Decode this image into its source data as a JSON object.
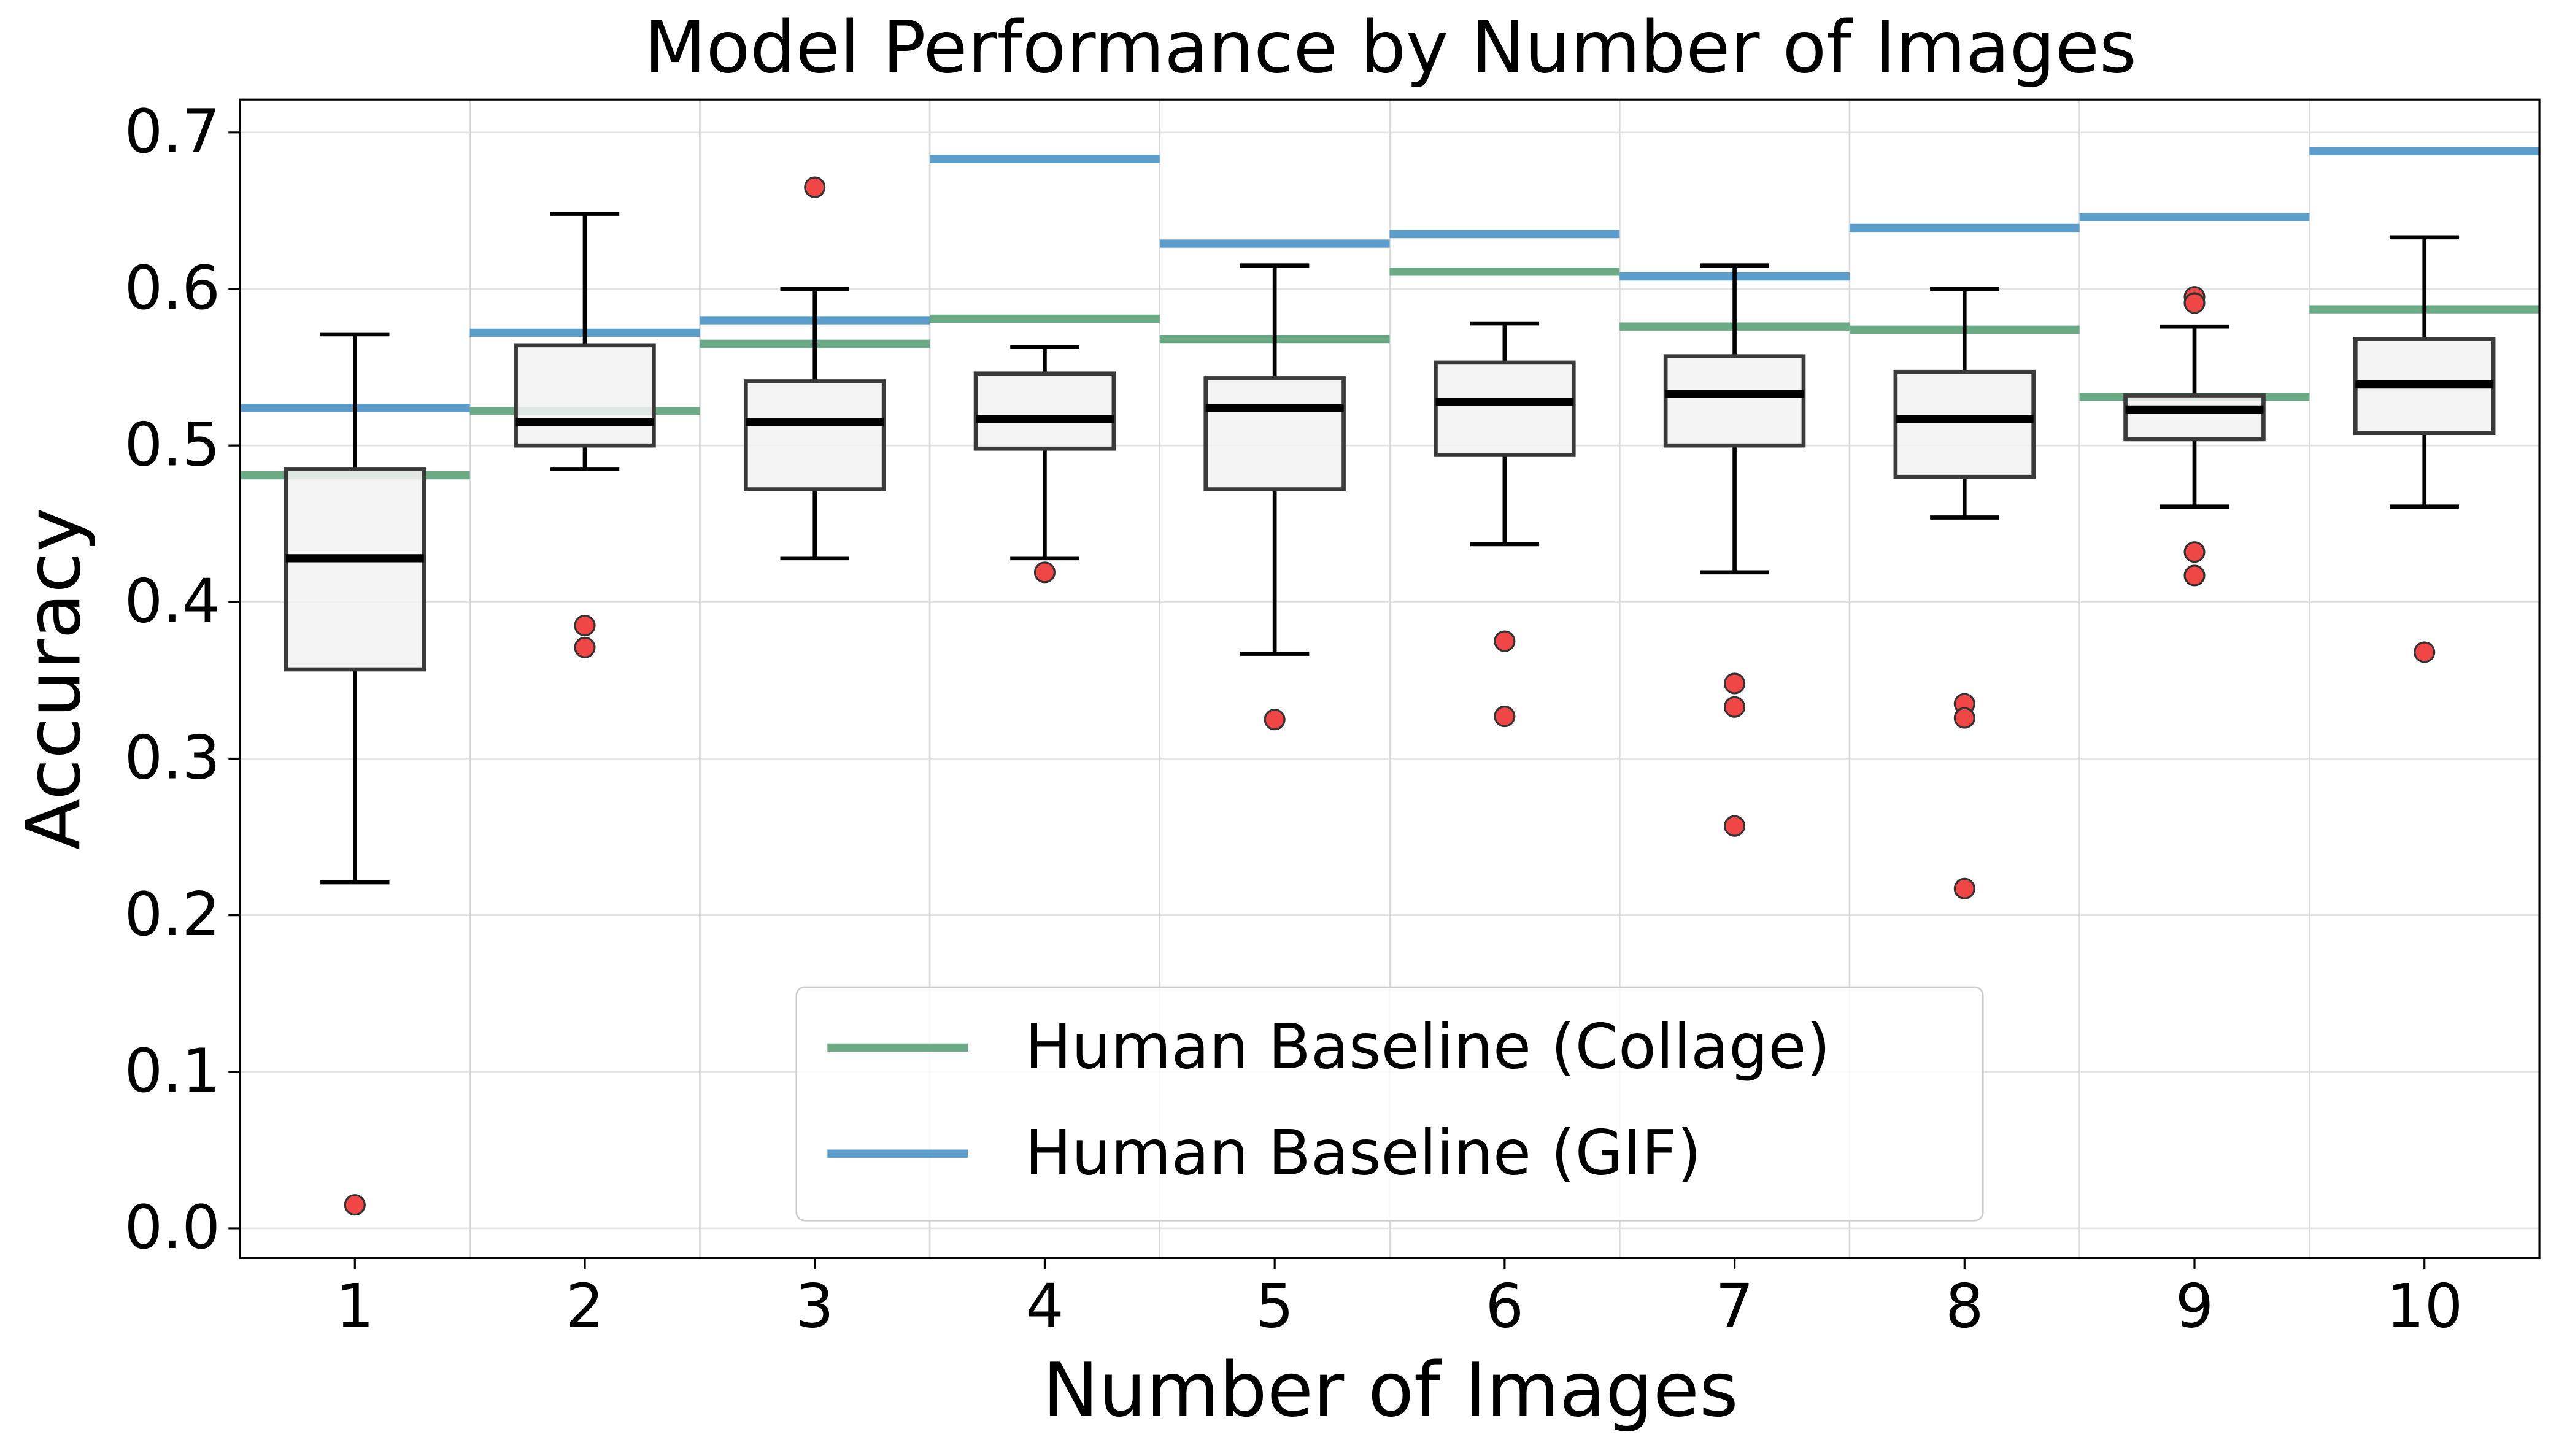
{
  "chart_data": {
    "type": "box",
    "title": "Model Performance by Number of Images",
    "x_label": "Number of Images",
    "y_label": "Accuracy",
    "categories": [
      "1",
      "2",
      "3",
      "4",
      "5",
      "6",
      "7",
      "8",
      "9",
      "10"
    ],
    "boxes": [
      {
        "whislo": 0.221,
        "q1": 0.357,
        "med": 0.428,
        "q3": 0.485,
        "whishi": 0.571,
        "fliers": [
          0.015
        ]
      },
      {
        "whislo": 0.485,
        "q1": 0.5,
        "med": 0.515,
        "q3": 0.564,
        "whishi": 0.648,
        "fliers": [
          0.385,
          0.371
        ]
      },
      {
        "whislo": 0.428,
        "q1": 0.472,
        "med": 0.515,
        "q3": 0.541,
        "whishi": 0.6,
        "fliers": [
          0.665
        ]
      },
      {
        "whislo": 0.428,
        "q1": 0.498,
        "med": 0.517,
        "q3": 0.546,
        "whishi": 0.563,
        "fliers": [
          0.419
        ]
      },
      {
        "whislo": 0.367,
        "q1": 0.472,
        "med": 0.524,
        "q3": 0.543,
        "whishi": 0.615,
        "fliers": [
          0.325
        ]
      },
      {
        "whislo": 0.437,
        "q1": 0.494,
        "med": 0.528,
        "q3": 0.553,
        "whishi": 0.578,
        "fliers": [
          0.375,
          0.327
        ]
      },
      {
        "whislo": 0.419,
        "q1": 0.5,
        "med": 0.533,
        "q3": 0.557,
        "whishi": 0.615,
        "fliers": [
          0.348,
          0.333,
          0.257
        ]
      },
      {
        "whislo": 0.454,
        "q1": 0.48,
        "med": 0.517,
        "q3": 0.547,
        "whishi": 0.6,
        "fliers": [
          0.335,
          0.326,
          0.217
        ]
      },
      {
        "whislo": 0.461,
        "q1": 0.504,
        "med": 0.523,
        "q3": 0.532,
        "whishi": 0.576,
        "fliers": [
          0.595,
          0.591,
          0.432,
          0.417
        ]
      },
      {
        "whislo": 0.461,
        "q1": 0.508,
        "med": 0.539,
        "q3": 0.568,
        "whishi": 0.633,
        "fliers": [
          0.368
        ]
      }
    ],
    "box_color": "#f2f2f2",
    "flier_color": "#f04646",
    "series": [
      {
        "name": "Human Baseline (Collage)",
        "color": "#6aaa84",
        "values": [
          0.481,
          0.522,
          0.565,
          0.581,
          0.568,
          0.611,
          0.576,
          0.574,
          0.531,
          0.587
        ]
      },
      {
        "name": "Human Baseline (GIF)",
        "color": "#5b9dcb",
        "values": [
          0.524,
          0.572,
          0.58,
          0.683,
          0.629,
          0.635,
          0.608,
          0.639,
          0.646,
          0.688
        ]
      }
    ],
    "ylim": [
      -0.019,
      0.721
    ],
    "yticks": [
      {
        "value": 0,
        "label": "0.0"
      },
      0.1,
      0.2,
      0.3,
      0.4,
      0.5,
      0.6,
      0.7
    ],
    "grid": true,
    "legend": "lower center"
  }
}
